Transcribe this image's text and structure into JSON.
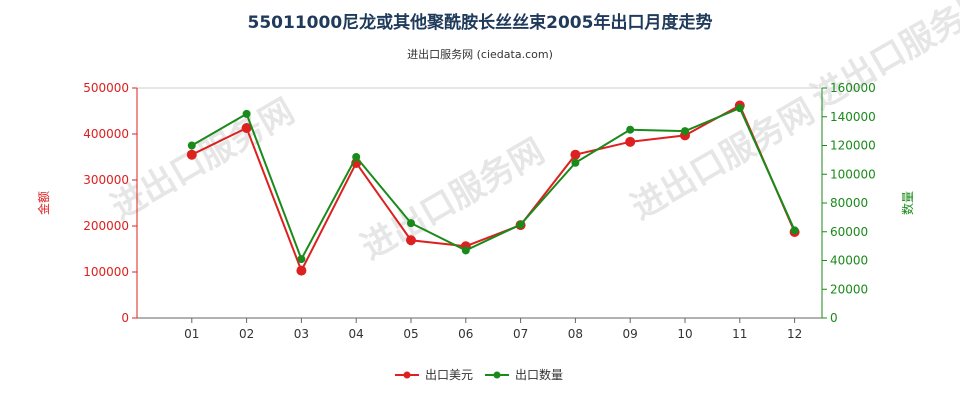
{
  "title": "55011000尼龙或其他聚酰胺长丝丝束2005年出口月度走势",
  "subtitle": "进出口服务网 (ciedata.com)",
  "watermark": "进出口服务网",
  "colors": {
    "left_axis": "#dd2020",
    "right_axis": "#1a8a1a",
    "title": "#1f3a5a"
  },
  "chart_data": {
    "type": "line",
    "title": "55011000尼龙或其他聚酰胺长丝丝束2005年出口月度走势",
    "categories": [
      "01",
      "02",
      "03",
      "04",
      "05",
      "06",
      "07",
      "08",
      "09",
      "10",
      "11",
      "12"
    ],
    "y_left": {
      "label": "金额",
      "min": 0,
      "max": 500000,
      "ticks": [
        "0",
        "100000",
        "200000",
        "300000",
        "400000",
        "500000"
      ]
    },
    "y_right": {
      "label": "数量",
      "min": 0,
      "max": 160000,
      "ticks": [
        "0",
        "20000",
        "40000",
        "60000",
        "80000",
        "100000",
        "120000",
        "140000",
        "160000"
      ]
    },
    "series": [
      {
        "name": "出口美元",
        "axis": "left",
        "color": "#dd2020",
        "values": [
          355000,
          413000,
          103000,
          337000,
          169000,
          156000,
          202000,
          355000,
          383000,
          397000,
          462000,
          187000
        ]
      },
      {
        "name": "出口数量",
        "axis": "right",
        "color": "#1a8a1a",
        "values": [
          120000,
          142000,
          41000,
          112000,
          66000,
          47000,
          65000,
          108000,
          131000,
          130000,
          146000,
          61000
        ]
      }
    ],
    "legend_position": "bottom-center"
  }
}
